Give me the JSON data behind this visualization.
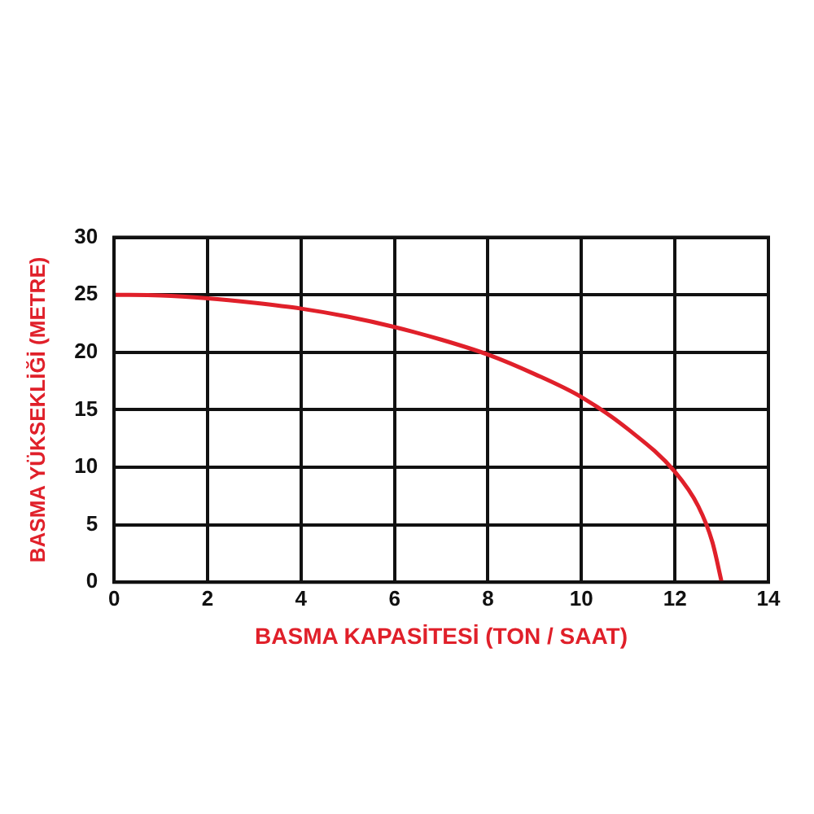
{
  "chart_data": {
    "type": "line",
    "xlabel": "BASMA KAPASİTESİ (TON / SAAT)",
    "ylabel": "BASMA YÜKSEKLİĞİ (METRE)",
    "x": [
      0,
      1,
      2,
      3,
      4,
      5,
      6,
      7,
      8,
      9,
      10,
      11,
      12,
      12.5,
      12.8,
      13
    ],
    "series": [
      {
        "color": "#e0202a",
        "values": [
          25,
          24.95,
          24.7,
          24.3,
          23.8,
          23.1,
          22.2,
          21.1,
          19.8,
          18.1,
          16.1,
          13.3,
          9.6,
          6.6,
          3.5,
          0
        ]
      }
    ],
    "xlim": [
      0,
      14
    ],
    "xticks": [
      0,
      2,
      4,
      6,
      8,
      10,
      12,
      14
    ],
    "ylim": [
      0,
      30
    ],
    "yticks": [
      0,
      5,
      10,
      15,
      20,
      25,
      30
    ],
    "grid": true,
    "legend": false,
    "marker": "none",
    "line_style": "solid"
  }
}
